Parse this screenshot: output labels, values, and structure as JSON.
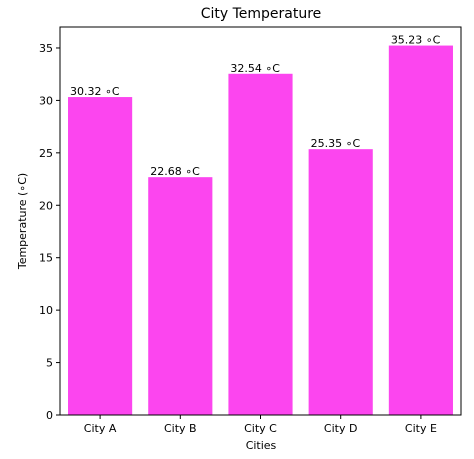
{
  "chart_data": {
    "type": "bar",
    "title": "City Temperature",
    "xlabel": "Cities",
    "ylabel": "Temperature (∘C)",
    "categories": [
      "City A",
      "City B",
      "City C",
      "City D",
      "City E"
    ],
    "values": [
      30.32,
      22.68,
      32.54,
      25.35,
      35.23
    ],
    "data_labels": [
      "30.32 ∘C",
      "22.68 ∘C",
      "32.54 ∘C",
      "25.35 ∘C",
      "35.23 ∘C"
    ],
    "ylim": [
      0,
      37
    ],
    "yticks": [
      0,
      5,
      10,
      15,
      20,
      25,
      30,
      35
    ],
    "grid": false,
    "legend": "none",
    "bar_color": "#fc45ef"
  }
}
